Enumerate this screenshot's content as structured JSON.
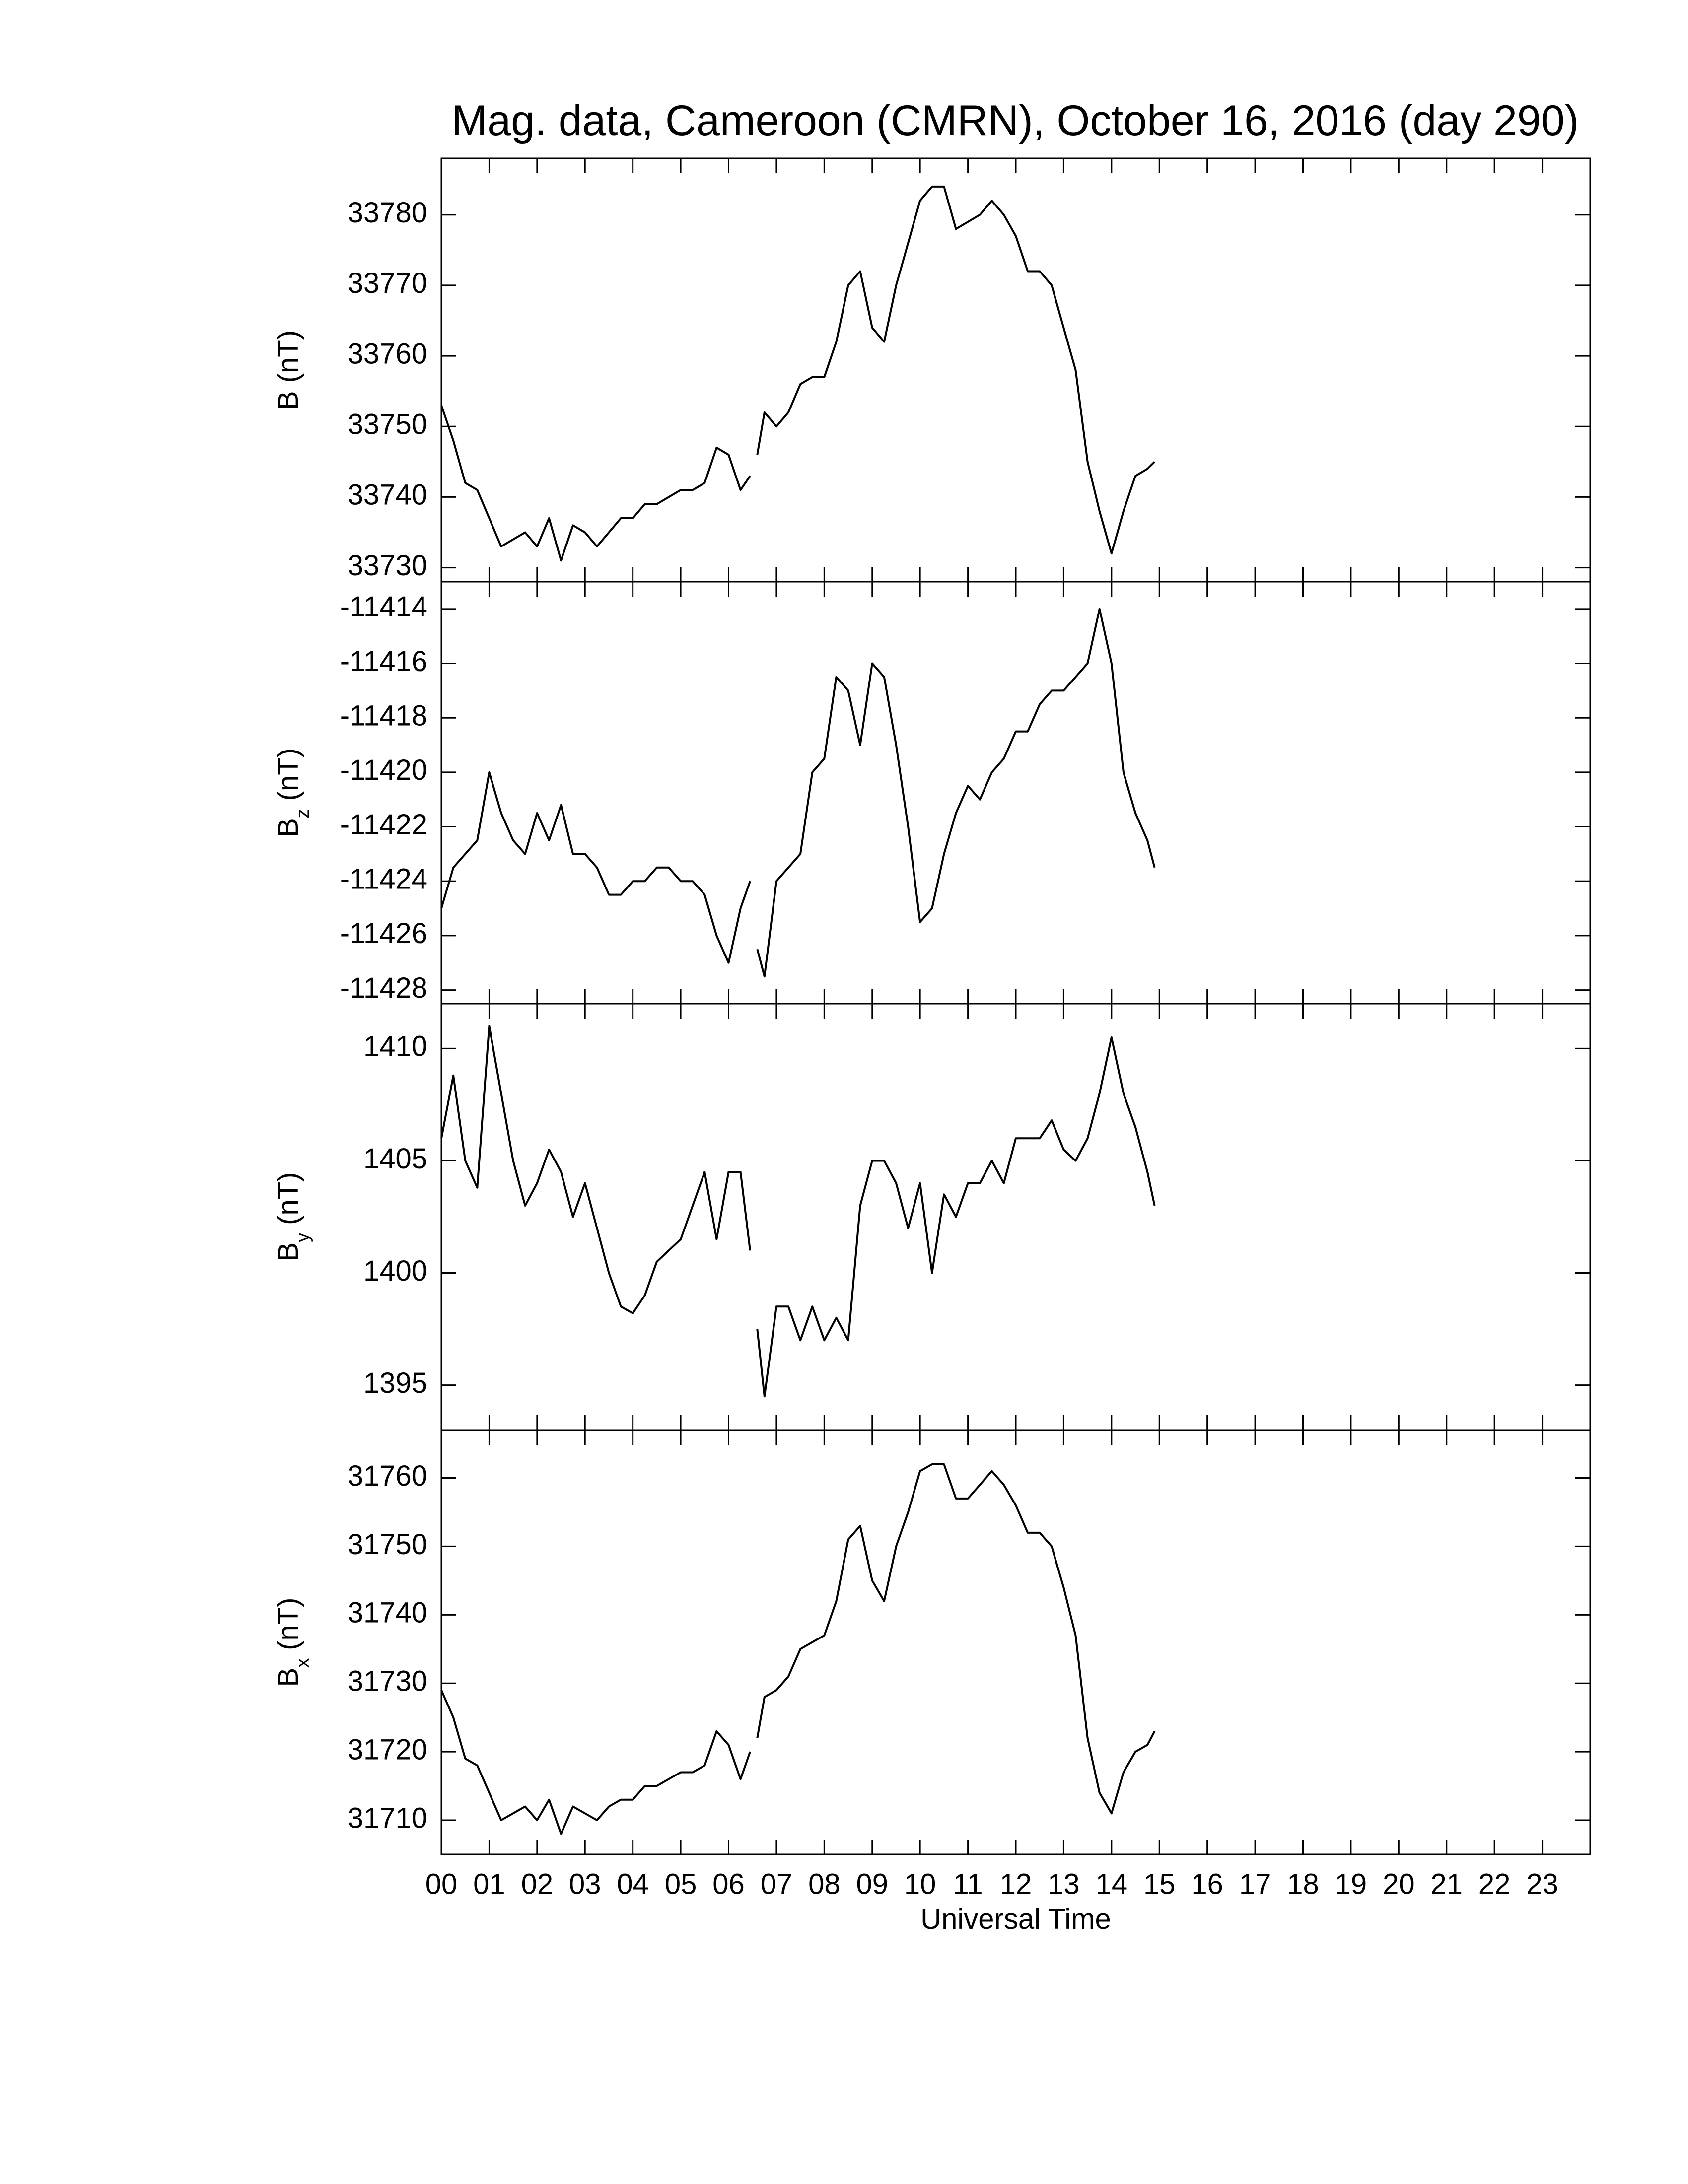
{
  "chart_data": [
    {
      "type": "line",
      "title": "Mag. data, Cameroon (CMRN), October 16, 2016 (day 290)",
      "ylabel": "B (nT)",
      "color": "#000000",
      "xlim": [
        0,
        24
      ],
      "ylim": [
        33728,
        33788
      ],
      "yticks": [
        33730,
        33740,
        33750,
        33760,
        33770,
        33780
      ],
      "x": [
        0,
        0.25,
        0.5,
        0.75,
        1,
        1.25,
        1.5,
        1.75,
        2,
        2.25,
        2.5,
        2.75,
        3,
        3.25,
        3.5,
        3.75,
        4,
        4.25,
        4.5,
        4.75,
        5,
        5.25,
        5.5,
        5.75,
        6,
        6.25,
        6.45,
        6.5,
        6.6,
        6.75,
        7,
        7.25,
        7.5,
        7.75,
        8,
        8.25,
        8.5,
        8.75,
        9,
        9.25,
        9.5,
        9.75,
        10,
        10.25,
        10.5,
        10.75,
        11,
        11.25,
        11.5,
        11.75,
        12,
        12.25,
        12.5,
        12.75,
        13,
        13.25,
        13.5,
        13.75,
        14,
        14.25,
        14.5,
        14.75,
        14.9
      ],
      "values": [
        33753,
        33748,
        33742,
        33741,
        33737,
        33733,
        33734,
        33735,
        33733,
        33737,
        33731,
        33736,
        33735,
        33733,
        33735,
        33737,
        33737,
        33739,
        33739,
        33740,
        33741,
        33741,
        33742,
        33747,
        33746,
        33741,
        33743,
        null,
        33746,
        33752,
        33750,
        33752,
        33756,
        33757,
        33757,
        33762,
        33770,
        33772,
        33764,
        33762,
        33770,
        33776,
        33782,
        33784,
        33784,
        33778,
        33779,
        33780,
        33782,
        33780,
        33777,
        33772,
        33772,
        33770,
        33764,
        33758,
        33745,
        33738,
        33732,
        33738,
        33743,
        33744,
        33745
      ]
    },
    {
      "type": "line",
      "ylabel": "B",
      "ylabel_subscript": "z",
      "ylabel_unit": "(nT)",
      "color": "#000000",
      "xlim": [
        0,
        24
      ],
      "ylim": [
        -11428.5,
        -11413
      ],
      "yticks": [
        -11428,
        -11426,
        -11424,
        -11422,
        -11420,
        -11418,
        -11416,
        -11414
      ],
      "x": [
        0,
        0.25,
        0.5,
        0.75,
        1,
        1.25,
        1.5,
        1.75,
        2,
        2.25,
        2.5,
        2.75,
        3,
        3.25,
        3.5,
        3.75,
        4,
        4.25,
        4.5,
        4.75,
        5,
        5.25,
        5.5,
        5.75,
        6,
        6.25,
        6.45,
        6.5,
        6.6,
        6.75,
        7,
        7.25,
        7.5,
        7.75,
        8,
        8.25,
        8.5,
        8.75,
        9,
        9.25,
        9.5,
        9.75,
        10,
        10.25,
        10.5,
        10.75,
        11,
        11.25,
        11.5,
        11.75,
        12,
        12.25,
        12.5,
        12.75,
        13,
        13.25,
        13.5,
        13.75,
        14,
        14.25,
        14.5,
        14.75,
        14.9
      ],
      "values": [
        -11425,
        -11423.5,
        -11423,
        -11422.5,
        -11420,
        -11421.5,
        -11422.5,
        -11423,
        -11421.5,
        -11422.5,
        -11421.2,
        -11423,
        -11423,
        -11423.5,
        -11424.5,
        -11424.5,
        -11424,
        -11424,
        -11423.5,
        -11423.5,
        -11424,
        -11424,
        -11424.5,
        -11426,
        -11427,
        -11425,
        -11424,
        null,
        -11426.5,
        -11427.5,
        -11424,
        -11423.5,
        -11423,
        -11420,
        -11419.5,
        -11416.5,
        -11417,
        -11419,
        -11416,
        -11416.5,
        -11419,
        -11422,
        -11425.5,
        -11425,
        -11423,
        -11421.5,
        -11420.5,
        -11421,
        -11420,
        -11419.5,
        -11418.5,
        -11418.5,
        -11417.5,
        -11417,
        -11417,
        -11416.5,
        -11416,
        -11414,
        -11416,
        -11420,
        -11421.5,
        -11422.5,
        -11423.5
      ]
    },
    {
      "type": "line",
      "ylabel": "B",
      "ylabel_subscript": "y",
      "ylabel_unit": "(nT)",
      "color": "#000000",
      "xlim": [
        0,
        24
      ],
      "ylim": [
        1393,
        1412
      ],
      "yticks": [
        1395,
        1400,
        1405,
        1410
      ],
      "x": [
        0,
        0.25,
        0.5,
        0.75,
        1,
        1.25,
        1.5,
        1.75,
        2,
        2.25,
        2.5,
        2.75,
        3,
        3.25,
        3.5,
        3.75,
        4,
        4.25,
        4.5,
        4.75,
        5,
        5.25,
        5.5,
        5.75,
        6,
        6.25,
        6.45,
        6.5,
        6.6,
        6.75,
        7,
        7.25,
        7.5,
        7.75,
        8,
        8.25,
        8.5,
        8.75,
        9,
        9.25,
        9.5,
        9.75,
        10,
        10.25,
        10.5,
        10.75,
        11,
        11.25,
        11.5,
        11.75,
        12,
        12.25,
        12.5,
        12.75,
        13,
        13.25,
        13.5,
        13.75,
        14,
        14.25,
        14.5,
        14.75,
        14.9
      ],
      "values": [
        1406,
        1408.8,
        1405,
        1403.8,
        1411,
        1408,
        1405,
        1403,
        1404,
        1405.5,
        1404.5,
        1402.5,
        1404,
        1402,
        1400,
        1398.5,
        1398.2,
        1399,
        1400.5,
        1401,
        1401.5,
        1403,
        1404.5,
        1401.5,
        1404.5,
        1404.5,
        1401,
        null,
        1397.5,
        1394.5,
        1398.5,
        1398.5,
        1397,
        1398.5,
        1397,
        1398,
        1397,
        1403,
        1405,
        1405,
        1404,
        1402,
        1404,
        1400,
        1403.5,
        1402.5,
        1404,
        1404,
        1405,
        1404,
        1406,
        1406,
        1406,
        1406.8,
        1405.5,
        1405,
        1406,
        1408,
        1410.5,
        1408,
        1406.5,
        1404.5,
        1403
      ]
    },
    {
      "type": "line",
      "ylabel": "B",
      "ylabel_subscript": "x",
      "ylabel_unit": "(nT)",
      "xlabel": "Universal Time",
      "color": "#000000",
      "xlim": [
        0,
        24
      ],
      "ylim": [
        31705,
        31767
      ],
      "yticks": [
        31710,
        31720,
        31730,
        31740,
        31750,
        31760
      ],
      "xticks": [
        {
          "value": 0,
          "label": "00"
        },
        {
          "value": 1,
          "label": "01"
        },
        {
          "value": 2,
          "label": "02"
        },
        {
          "value": 3,
          "label": "03"
        },
        {
          "value": 4,
          "label": "04"
        },
        {
          "value": 5,
          "label": "05"
        },
        {
          "value": 6,
          "label": "06"
        },
        {
          "value": 7,
          "label": "07"
        },
        {
          "value": 8,
          "label": "08"
        },
        {
          "value": 9,
          "label": "09"
        },
        10,
        11,
        12,
        13,
        14,
        15,
        16,
        17,
        18,
        19,
        20,
        21,
        22,
        23
      ],
      "x": [
        0,
        0.25,
        0.5,
        0.75,
        1,
        1.25,
        1.5,
        1.75,
        2,
        2.25,
        2.5,
        2.75,
        3,
        3.25,
        3.5,
        3.75,
        4,
        4.25,
        4.5,
        4.75,
        5,
        5.25,
        5.5,
        5.75,
        6,
        6.25,
        6.45,
        6.5,
        6.6,
        6.75,
        7,
        7.25,
        7.5,
        7.75,
        8,
        8.25,
        8.5,
        8.75,
        9,
        9.25,
        9.5,
        9.75,
        10,
        10.25,
        10.5,
        10.75,
        11,
        11.25,
        11.5,
        11.75,
        12,
        12.25,
        12.5,
        12.75,
        13,
        13.25,
        13.5,
        13.75,
        14,
        14.25,
        14.5,
        14.75,
        14.9
      ],
      "values": [
        31729,
        31725,
        31719,
        31718,
        31714,
        31710,
        31711,
        31712,
        31710,
        31713,
        31708,
        31712,
        31711,
        31710,
        31712,
        31713,
        31713,
        31715,
        31715,
        31716,
        31717,
        31717,
        31718,
        31723,
        31721,
        31716,
        31720,
        null,
        31722,
        31728,
        31729,
        31731,
        31735,
        31736,
        31737,
        31742,
        31751,
        31753,
        31745,
        31742,
        31750,
        31755,
        31761,
        31762,
        31762,
        31757,
        31757,
        31759,
        31761,
        31759,
        31756,
        31752,
        31752,
        31750,
        31744,
        31737,
        31722,
        31714,
        31711,
        31717,
        31720,
        31721,
        31723
      ]
    }
  ]
}
